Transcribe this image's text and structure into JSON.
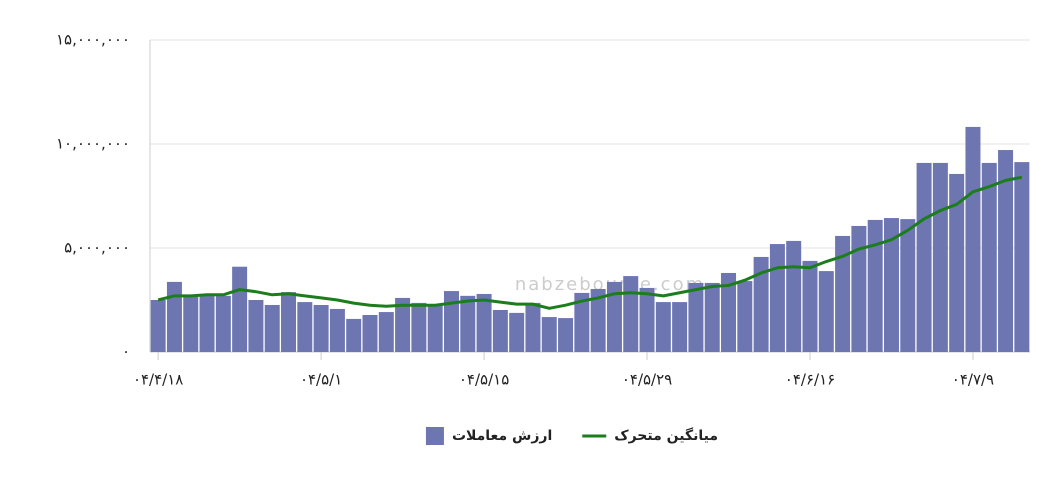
{
  "chart_data": {
    "type": "bar_line",
    "watermark": "nabzebourse.com",
    "categories": [
      "۰۴/۴/۱۸",
      null,
      null,
      null,
      null,
      null,
      null,
      null,
      null,
      null,
      "۰۴/۵/۱",
      null,
      null,
      null,
      null,
      null,
      null,
      null,
      null,
      null,
      "۰۴/۵/۱۵",
      null,
      null,
      null,
      null,
      null,
      null,
      null,
      null,
      null,
      "۰۴/۵/۲۹",
      null,
      null,
      null,
      null,
      null,
      null,
      null,
      null,
      null,
      "۰۴/۶/۱۶",
      null,
      null,
      null,
      null,
      null,
      null,
      null,
      null,
      null,
      "۰۴/۷/۹",
      null,
      null,
      null
    ],
    "series": [
      {
        "name": "ارزش معاملات",
        "kind": "bar",
        "color": "#6e76b2",
        "values": [
          2500000,
          3370000,
          2700000,
          2700000,
          2700000,
          4100000,
          2500000,
          2260000,
          2880000,
          2400000,
          2260000,
          2070000,
          1590000,
          1780000,
          1920000,
          2600000,
          2360000,
          2260000,
          2930000,
          2700000,
          2790000,
          2020000,
          1880000,
          2360000,
          1680000,
          1630000,
          2840000,
          3030000,
          3370000,
          3650000,
          3080000,
          2400000,
          2400000,
          3320000,
          3320000,
          3800000,
          3410000,
          4570000,
          5190000,
          5340000,
          4380000,
          3890000,
          5580000,
          6060000,
          6350000,
          6440000,
          6390000,
          9090000,
          9090000,
          8560000,
          10820000,
          9090000,
          9710000,
          9130000
        ]
      },
      {
        "name": "میانگین متحرک",
        "kind": "line",
        "color": "#1c7d1c",
        "values": [
          2500000,
          2700000,
          2700000,
          2750000,
          2750000,
          3000000,
          2900000,
          2750000,
          2800000,
          2700000,
          2600000,
          2500000,
          2350000,
          2250000,
          2200000,
          2250000,
          2250000,
          2250000,
          2350000,
          2450000,
          2500000,
          2400000,
          2300000,
          2300000,
          2100000,
          2250000,
          2450000,
          2600000,
          2800000,
          2850000,
          2800000,
          2700000,
          2850000,
          3000000,
          3150000,
          3200000,
          3450000,
          3800000,
          4050000,
          4100000,
          4050000,
          4350000,
          4600000,
          4950000,
          5150000,
          5400000,
          5850000,
          6400000,
          6800000,
          7100000,
          7700000,
          7950000,
          8250000,
          8400000
        ]
      }
    ],
    "ylim": [
      0,
      15000000
    ],
    "yticks": [
      {
        "value": 0,
        "label": "۰"
      },
      {
        "value": 5000000,
        "label": "۵,۰۰۰,۰۰۰"
      },
      {
        "value": 10000000,
        "label": "۱۰,۰۰۰,۰۰۰"
      },
      {
        "value": 15000000,
        "label": "۱۵,۰۰۰,۰۰۰"
      }
    ],
    "grid": true
  }
}
